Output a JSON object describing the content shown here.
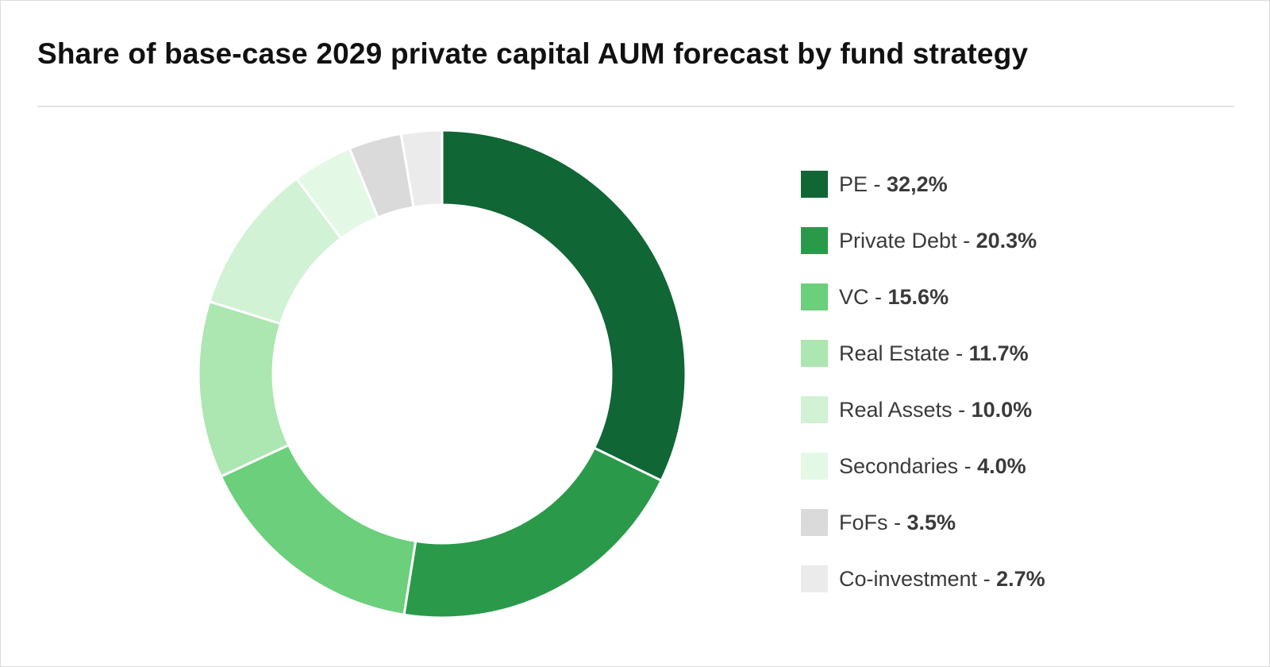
{
  "title": "Share of base-case 2029 private capital AUM forecast by fund strategy",
  "legend_separator": " - ",
  "chart_data": {
    "type": "pie",
    "variant": "donut",
    "title": "Share of base-case 2029 private capital AUM forecast by fund strategy",
    "legend_position": "right",
    "slices": [
      {
        "label": "PE",
        "value": 32.2,
        "display": "32,2%",
        "color": "#106635"
      },
      {
        "label": "Private Debt",
        "value": 20.3,
        "display": "20.3%",
        "color": "#2a9a4a"
      },
      {
        "label": "VC",
        "value": 15.6,
        "display": "15.6%",
        "color": "#6bcf7b"
      },
      {
        "label": "Real Estate",
        "value": 11.7,
        "display": "11.7%",
        "color": "#ace6b0"
      },
      {
        "label": "Real Assets",
        "value": 10.0,
        "display": "10.0%",
        "color": "#d1f2d4"
      },
      {
        "label": "Secondaries",
        "value": 4.0,
        "display": "4.0%",
        "color": "#e4f8e6"
      },
      {
        "label": "FoFs",
        "value": 3.5,
        "display": "3.5%",
        "color": "#dadada"
      },
      {
        "label": "Co-investment",
        "value": 2.7,
        "display": "2.7%",
        "color": "#ebebeb"
      }
    ]
  }
}
